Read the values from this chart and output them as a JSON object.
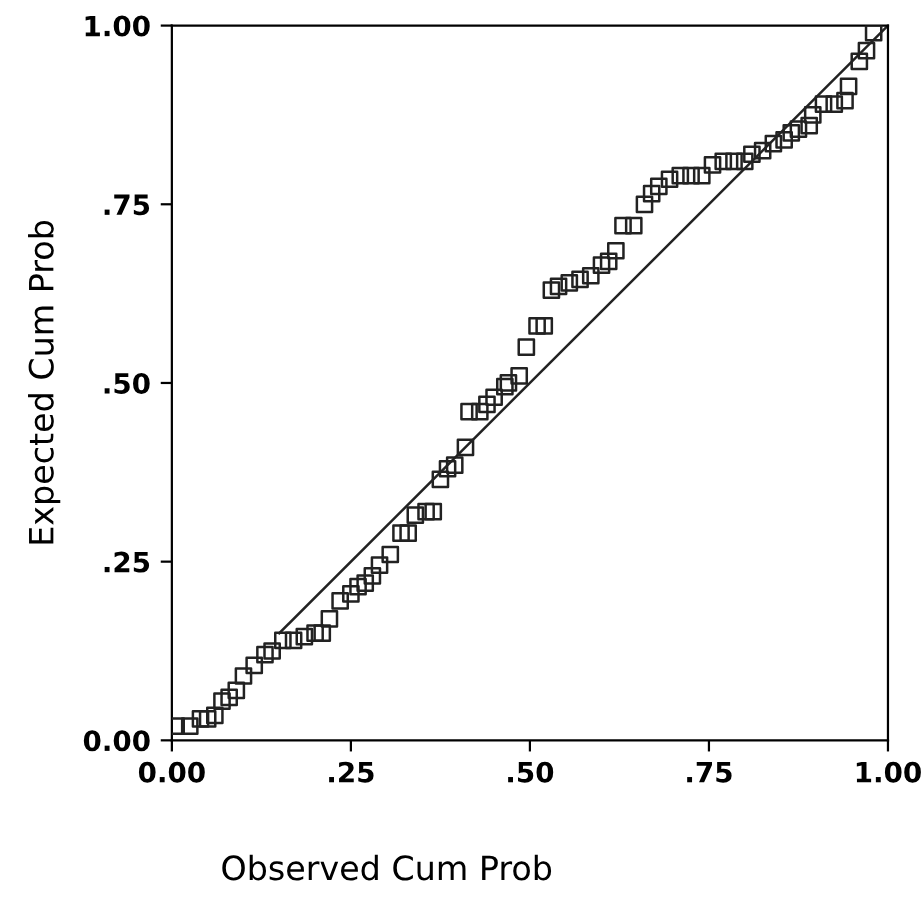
{
  "chart_data": {
    "type": "scatter",
    "xlabel": "Observed Cum Prob",
    "ylabel": "Expected Cum Prob",
    "xlim": [
      0,
      1
    ],
    "ylim": [
      0,
      1
    ],
    "xticks": [
      {
        "value": 0,
        "label": "0.00"
      },
      {
        "value": 0.25,
        "label": ".25"
      },
      {
        "value": 0.5,
        "label": ".50"
      },
      {
        "value": 0.75,
        "label": ".75"
      },
      {
        "value": 1,
        "label": "1.00"
      }
    ],
    "yticks": [
      {
        "value": 0,
        "label": "0.00"
      },
      {
        "value": 0.25,
        "label": ".25"
      },
      {
        "value": 0.5,
        "label": ".50"
      },
      {
        "value": 0.75,
        "label": ".75"
      },
      {
        "value": 1,
        "label": "1.00"
      }
    ],
    "marker": "square",
    "grid": false,
    "legend": false,
    "series": [
      {
        "color": "#222222",
        "x": [
          0.006,
          0.025,
          0.04,
          0.05,
          0.06,
          0.07,
          0.08,
          0.09,
          0.1,
          0.115,
          0.13,
          0.14,
          0.155,
          0.17,
          0.185,
          0.2,
          0.21,
          0.22,
          0.235,
          0.25,
          0.26,
          0.27,
          0.28,
          0.29,
          0.305,
          0.32,
          0.33,
          0.34,
          0.355,
          0.365,
          0.375,
          0.385,
          0.395,
          0.41,
          0.415,
          0.43,
          0.44,
          0.45,
          0.465,
          0.47,
          0.485,
          0.495,
          0.51,
          0.52,
          0.53,
          0.54,
          0.555,
          0.57,
          0.585,
          0.6,
          0.61,
          0.62,
          0.63,
          0.645,
          0.66,
          0.67,
          0.68,
          0.695,
          0.71,
          0.725,
          0.74,
          0.755,
          0.77,
          0.785,
          0.8,
          0.81,
          0.825,
          0.84,
          0.855,
          0.865,
          0.875,
          0.89,
          0.895,
          0.91,
          0.925,
          0.94,
          0.945,
          0.96,
          0.97,
          0.98
        ],
        "values": [
          0.02,
          0.02,
          0.03,
          0.03,
          0.035,
          0.055,
          0.06,
          0.07,
          0.09,
          0.105,
          0.12,
          0.125,
          0.14,
          0.14,
          0.145,
          0.15,
          0.15,
          0.17,
          0.195,
          0.205,
          0.215,
          0.22,
          0.23,
          0.245,
          0.26,
          0.29,
          0.29,
          0.315,
          0.32,
          0.32,
          0.365,
          0.38,
          0.385,
          0.41,
          0.46,
          0.46,
          0.47,
          0.48,
          0.495,
          0.5,
          0.51,
          0.55,
          0.58,
          0.58,
          0.63,
          0.635,
          0.64,
          0.645,
          0.65,
          0.665,
          0.67,
          0.685,
          0.72,
          0.72,
          0.75,
          0.765,
          0.775,
          0.785,
          0.79,
          0.79,
          0.79,
          0.805,
          0.81,
          0.81,
          0.81,
          0.82,
          0.825,
          0.835,
          0.84,
          0.85,
          0.855,
          0.86,
          0.875,
          0.89,
          0.89,
          0.895,
          0.915,
          0.95,
          0.965,
          0.99
        ]
      },
      {
        "type": "line",
        "color": "#222222",
        "marker": "none",
        "line_style": "solid",
        "x": [
          0.15,
          1.0
        ],
        "values": [
          0.15,
          1.0
        ]
      }
    ]
  }
}
